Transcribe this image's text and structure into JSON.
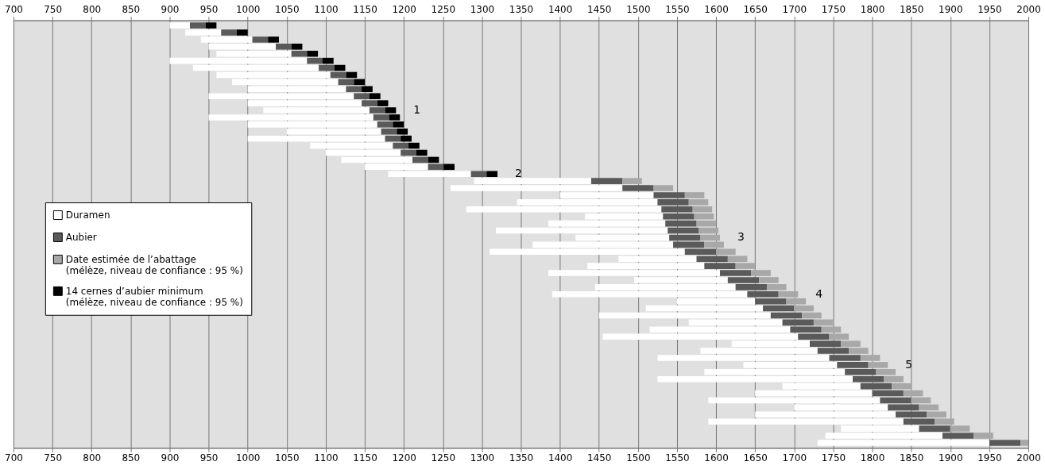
{
  "chart_data": {
    "type": "bar",
    "orientation": "horizontal",
    "categories": [
      null,
      null,
      null,
      null,
      null,
      null,
      null,
      null,
      null,
      null,
      null,
      null,
      null,
      null,
      null,
      null,
      null,
      null,
      null,
      null,
      null,
      null,
      null,
      null,
      null,
      null,
      null,
      null,
      null,
      null,
      null,
      null,
      null,
      null,
      null,
      null,
      null,
      null,
      null,
      null,
      null,
      null,
      null,
      null,
      null,
      null,
      null,
      null,
      null,
      null,
      null,
      null,
      null,
      null,
      null,
      null,
      null,
      null,
      null,
      null
    ],
    "series": [
      {
        "name": "Duramen",
        "color": "#ffffff",
        "base": [
          900,
          920,
          940,
          950,
          960,
          900,
          930,
          960,
          980,
          1000,
          950,
          1000,
          1020,
          950,
          1000,
          1050,
          1000,
          1080,
          1100,
          1120,
          1150,
          1180,
          1290,
          1260,
          1400,
          1345,
          1280,
          1432,
          1385,
          1318,
          1420,
          1365,
          1310,
          1475,
          1435,
          1385,
          1495,
          1445,
          1390,
          1550,
          1510,
          1450,
          1565,
          1515,
          1455,
          1620,
          1580,
          1525,
          1635,
          1585,
          1525,
          1685,
          1650,
          1590,
          1700,
          1650,
          1590,
          1760,
          1740,
          1730
        ],
        "values": [
          26,
          46,
          66,
          86,
          96,
          176,
          161,
          146,
          136,
          126,
          186,
          146,
          136,
          211,
          166,
          121,
          176,
          106,
          96,
          91,
          81,
          106,
          150,
          220,
          120,
          180,
          250,
          100,
          150,
          220,
          120,
          180,
          250,
          100,
          150,
          220,
          120,
          180,
          250,
          100,
          150,
          220,
          120,
          180,
          250,
          100,
          150,
          220,
          120,
          180,
          250,
          100,
          150,
          220,
          120,
          180,
          250,
          100,
          150,
          220
        ]
      },
      {
        "name": "Aubier",
        "color": "#5a5a5a",
        "base": [
          926,
          966,
          1006,
          1036,
          1056,
          1076,
          1091,
          1106,
          1116,
          1126,
          1136,
          1146,
          1156,
          1161,
          1166,
          1171,
          1176,
          1186,
          1196,
          1211,
          1231,
          1286,
          1440,
          1480,
          1520,
          1525,
          1530,
          1532,
          1535,
          1538,
          1540,
          1545,
          1560,
          1575,
          1585,
          1605,
          1615,
          1625,
          1640,
          1650,
          1660,
          1670,
          1685,
          1695,
          1705,
          1720,
          1730,
          1745,
          1755,
          1765,
          1775,
          1785,
          1800,
          1810,
          1820,
          1830,
          1840,
          1860,
          1890,
          1950
        ],
        "values": [
          20,
          20,
          20,
          20,
          20,
          20,
          20,
          20,
          20,
          20,
          20,
          20,
          20,
          20,
          20,
          20,
          20,
          20,
          20,
          20,
          20,
          20,
          40,
          40,
          40,
          40,
          40,
          40,
          40,
          40,
          40,
          40,
          40,
          40,
          40,
          40,
          40,
          40,
          40,
          40,
          40,
          40,
          40,
          40,
          40,
          40,
          40,
          40,
          40,
          40,
          40,
          40,
          40,
          40,
          40,
          40,
          40,
          40,
          40,
          40
        ]
      },
      {
        "name": "Date estimée de l’abattage\n(mélèze, niveau de confiance : 95 %)",
        "color": "#a8a8a8",
        "base": [
          null,
          null,
          null,
          null,
          null,
          null,
          null,
          null,
          null,
          null,
          null,
          null,
          null,
          null,
          null,
          null,
          null,
          null,
          null,
          null,
          null,
          null,
          1480,
          1520,
          1560,
          1565,
          1570,
          1572,
          1575,
          1578,
          1580,
          1585,
          1600,
          1615,
          1625,
          1645,
          1655,
          1665,
          1680,
          1690,
          1700,
          1710,
          1725,
          1735,
          1745,
          1760,
          1770,
          1785,
          1795,
          1805,
          1815,
          1825,
          1840,
          1850,
          1860,
          1870,
          1880,
          1900,
          1930,
          1990
        ],
        "values": [
          null,
          null,
          null,
          null,
          null,
          null,
          null,
          null,
          null,
          null,
          null,
          null,
          null,
          null,
          null,
          null,
          null,
          null,
          null,
          null,
          null,
          null,
          25,
          25,
          25,
          25,
          25,
          25,
          25,
          25,
          25,
          25,
          25,
          25,
          25,
          25,
          25,
          25,
          25,
          25,
          25,
          25,
          25,
          25,
          25,
          25,
          25,
          25,
          25,
          25,
          25,
          25,
          25,
          25,
          25,
          25,
          25,
          25,
          25,
          10
        ]
      },
      {
        "name": "14 cernes d’aubier minimum\n(mélèze, niveau de confiance : 95 %)",
        "color": "#000000",
        "base": [
          946,
          986,
          1026,
          1056,
          1076,
          1096,
          1111,
          1126,
          1136,
          1146,
          1156,
          1166,
          1176,
          1181,
          1186,
          1191,
          1196,
          1206,
          1216,
          1231,
          1251,
          1306,
          null,
          null,
          null,
          null,
          null,
          null,
          null,
          null,
          null,
          null,
          null,
          null,
          null,
          null,
          null,
          null,
          null,
          null,
          null,
          null,
          null,
          null,
          null,
          null,
          null,
          null,
          null,
          null,
          null,
          null,
          null,
          null,
          null,
          null,
          null,
          null,
          null,
          null
        ],
        "values": [
          14,
          14,
          14,
          14,
          14,
          14,
          14,
          14,
          14,
          14,
          14,
          14,
          14,
          14,
          14,
          14,
          14,
          14,
          14,
          14,
          14,
          14,
          null,
          null,
          null,
          null,
          null,
          null,
          null,
          null,
          null,
          null,
          null,
          null,
          null,
          null,
          null,
          null,
          null,
          null,
          null,
          null,
          null,
          null,
          null,
          null,
          null,
          null,
          null,
          null,
          null,
          null,
          null,
          null,
          null,
          null,
          null,
          null,
          null,
          null
        ]
      }
    ],
    "xlim": [
      700,
      2000
    ],
    "xticks": [
      700,
      750,
      800,
      850,
      900,
      950,
      1000,
      1050,
      1100,
      1150,
      1200,
      1250,
      1300,
      1350,
      1400,
      1450,
      1500,
      1550,
      1600,
      1650,
      1700,
      1750,
      1800,
      1850,
      1900,
      1950,
      2000
    ],
    "x2lim": [
      700,
      2000
    ],
    "x2ticks": [
      700,
      750,
      800,
      850,
      900,
      950,
      1000,
      1050,
      1100,
      1150,
      1200,
      1250,
      1300,
      1350,
      1400,
      1450,
      1500,
      1550,
      1600,
      1650,
      1700,
      1750,
      1800,
      1850,
      1900,
      1950,
      2000
    ],
    "tick_labels": "x",
    "grid": "x",
    "legend": "left",
    "annotations": [
      "1",
      "2",
      "3",
      "4",
      "5"
    ]
  }
}
